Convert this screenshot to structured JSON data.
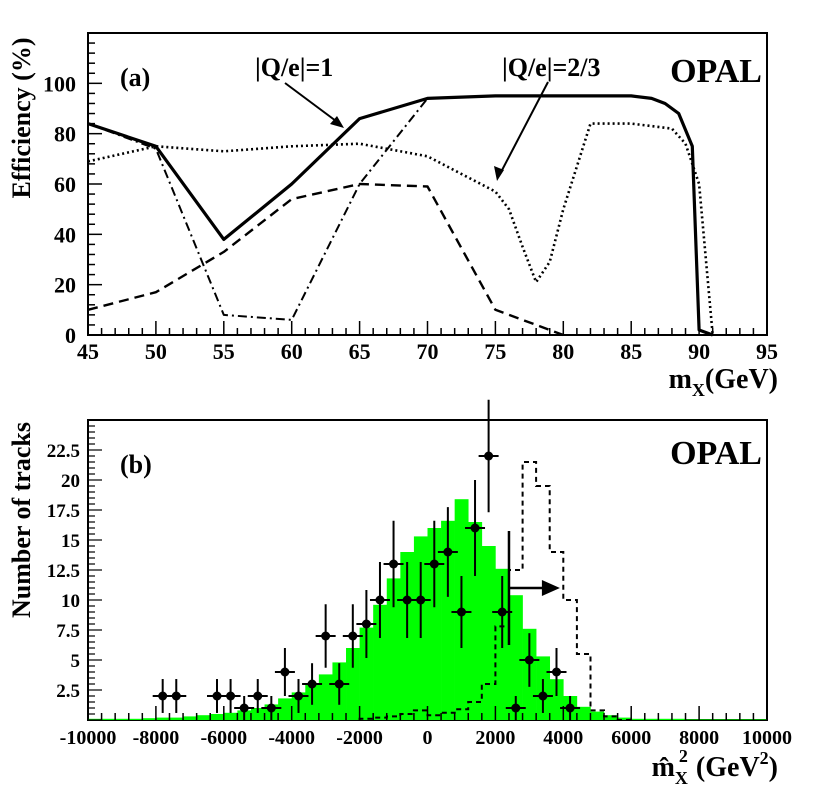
{
  "chart_data": [
    {
      "panel_label": "(a)",
      "experiment": "OPAL",
      "type": "line",
      "xlabel": "m",
      "xlabel_sub": "X",
      "xlabel_unit": "(GeV)",
      "ylabel": "Efficiency (%)",
      "xlim": [
        45,
        95
      ],
      "ylim": [
        0,
        120
      ],
      "x_ticks": [
        "45",
        "50",
        "55",
        "60",
        "65",
        "70",
        "75",
        "80",
        "85",
        "90",
        "95"
      ],
      "y_ticks": [
        "0",
        "20",
        "40",
        "60",
        "80",
        "100"
      ],
      "annotations": [
        {
          "text": "|Q/e|=1",
          "points_to": "solid"
        },
        {
          "text": "|Q/e|=2/3",
          "points_to": "dotted"
        }
      ],
      "series": [
        {
          "name": "|Q/e|=1",
          "style": "solid",
          "x": [
            45,
            50,
            55,
            60,
            65,
            70,
            75,
            80,
            85,
            86.5,
            87.5,
            88.5,
            89.5,
            90,
            91
          ],
          "y": [
            84,
            75,
            38,
            60,
            86,
            94,
            95,
            95,
            95,
            94,
            92,
            88,
            75,
            2,
            0
          ]
        },
        {
          "name": "|Q/e|=2/3",
          "style": "dotted",
          "x": [
            45,
            50,
            55,
            60,
            65,
            70,
            75,
            76,
            77,
            78,
            79,
            80,
            82,
            85,
            88,
            89,
            90,
            91
          ],
          "y": [
            69,
            75,
            73,
            75,
            76,
            71,
            57,
            50,
            35,
            21,
            29,
            50,
            84,
            84,
            82,
            76,
            60,
            0
          ]
        },
        {
          "name": "dashed",
          "style": "dashed",
          "x": [
            45,
            50,
            55,
            60,
            65,
            70,
            75,
            80
          ],
          "y": [
            10,
            17,
            33,
            54,
            60,
            59,
            10,
            0
          ]
        },
        {
          "name": "dash-dot",
          "style": "dashdot",
          "x": [
            45,
            50,
            55,
            60,
            65,
            70
          ],
          "y": [
            84,
            74,
            8,
            6,
            60,
            94
          ]
        }
      ]
    },
    {
      "panel_label": "(b)",
      "experiment": "OPAL",
      "type": "histogram",
      "xlabel": "m̂",
      "xlabel_sub": "X",
      "xlabel_sup": "2",
      "xlabel_unit_pre": "(GeV",
      "xlabel_unit_sup": "2",
      "xlabel_unit_post": ")",
      "ylabel": "Number of tracks",
      "xlim": [
        -10000,
        10000
      ],
      "ylim": [
        0,
        25
      ],
      "x_ticks": [
        "-10000",
        "-8000",
        "-6000",
        "-4000",
        "-2000",
        "0",
        "2000",
        "4000",
        "6000",
        "8000",
        "10000"
      ],
      "y_ticks": [
        "2.5",
        "5",
        "7.5",
        "10",
        "12.5",
        "15",
        "17.5",
        "20",
        "22.5"
      ],
      "bin_edges_start": -10000,
      "bin_width": 400,
      "green_histogram": [
        0.1,
        0.1,
        0.1,
        0.1,
        0.15,
        0.2,
        0.2,
        0.3,
        0.4,
        0.5,
        0.6,
        0.8,
        1.0,
        1.3,
        1.8,
        2.3,
        3.0,
        3.8,
        4.8,
        6.0,
        7.7,
        9.6,
        11.8,
        14.0,
        15.3,
        16.0,
        16.6,
        18.4,
        16.5,
        14.5,
        12.6,
        10.4,
        7.6,
        5.3,
        3.4,
        2.0,
        1.1,
        0.7,
        0.4,
        0.2,
        0.1,
        0.1,
        0.1,
        0.1,
        0.05,
        0.05,
        0.05,
        0.05,
        0.05,
        0.05
      ],
      "dashed_histogram_bins": [
        -2000,
        -1600,
        -1200,
        -800,
        -400,
        0,
        400,
        800,
        1200,
        1600,
        2000,
        2400,
        2800,
        3200,
        3600,
        4000,
        4400,
        4800,
        5200,
        5600
      ],
      "dashed_histogram_values": [
        0.1,
        0.2,
        0.3,
        0.5,
        0.8,
        0.4,
        0.6,
        0.9,
        1.5,
        3.0,
        7.8,
        12.5,
        21.5,
        19.5,
        14.0,
        10.0,
        5.5,
        0.8,
        0.3,
        0.0
      ],
      "data_points": {
        "x": [
          -7800,
          -7400,
          -6200,
          -5800,
          -5400,
          -5000,
          -4600,
          -4200,
          -3800,
          -3400,
          -3000,
          -2600,
          -2200,
          -1800,
          -1400,
          -1000,
          -600,
          -200,
          200,
          600,
          1000,
          1400,
          1800,
          2200,
          2600,
          3000,
          3400,
          3800,
          4200
        ],
        "y": [
          2,
          2,
          2,
          2,
          1,
          2,
          1,
          4,
          2,
          3,
          7,
          3,
          7,
          8,
          10,
          13,
          10,
          10,
          13,
          14,
          9,
          16,
          22,
          9,
          1,
          5,
          2,
          4,
          1
        ]
      },
      "cut_marker": {
        "x": 2400,
        "arrow_to": 3900,
        "y": 11
      }
    }
  ]
}
